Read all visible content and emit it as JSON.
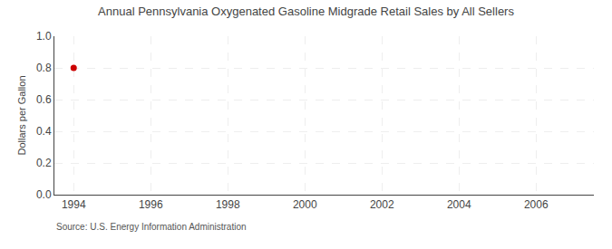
{
  "chart_data": {
    "type": "scatter",
    "title": "Annual Pennsylvania Oxygenated Gasoline Midgrade Retail Sales by All Sellers",
    "ylabel": "Dollars per Gallon",
    "source": "Source: U.S. Energy Information Administration",
    "x": [
      1994
    ],
    "values": [
      0.8
    ],
    "color": "#cc0000",
    "marker": "circle",
    "xlim": [
      1993.5,
      2007.5
    ],
    "ylim": [
      0.0,
      1.0
    ],
    "xticks": [
      1994,
      1996,
      1998,
      2000,
      2002,
      2004,
      2006
    ],
    "yticks": [
      {
        "value": 0.0,
        "label": "0.0"
      },
      0.2,
      0.4,
      0.6,
      0.8,
      {
        "value": 1.0,
        "label": "1.0"
      }
    ],
    "grid": true
  }
}
